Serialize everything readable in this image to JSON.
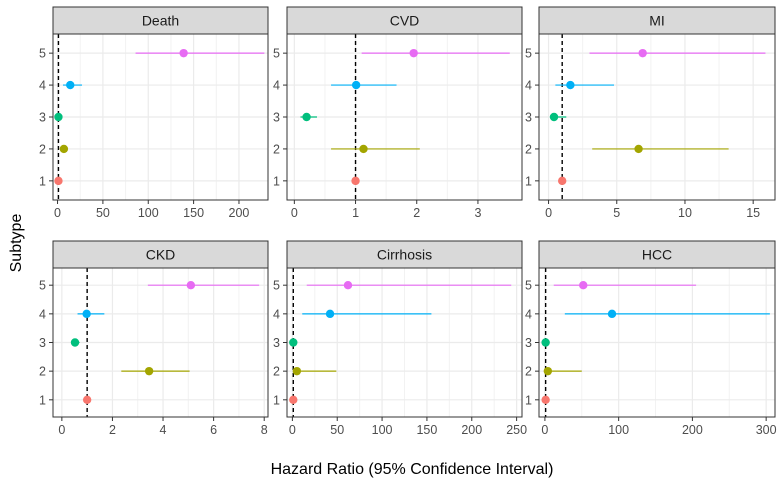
{
  "chart_data": {
    "type": "forest",
    "xlabel": "Hazard Ratio (95% Confidence Interval)",
    "ylabel": "Subtype",
    "subtypes": [
      "1",
      "2",
      "3",
      "4",
      "5"
    ],
    "reference_line": 1,
    "grid": true,
    "legend": "none",
    "colors": [
      "#F8766D",
      "#A3A500",
      "#00BF7D",
      "#00B0F6",
      "#E76BF3"
    ],
    "panels": [
      {
        "title": "Death",
        "xlim": [
          -5,
          232
        ],
        "xticks": [
          0,
          50,
          100,
          150,
          200
        ],
        "tick_labels": [
          "0",
          "50",
          "100",
          "150",
          "200"
        ],
        "points": [
          {
            "subtype": "1",
            "hr": 1,
            "lo": 1,
            "hi": 1
          },
          {
            "subtype": "2",
            "hr": 7,
            "lo": 4,
            "hi": 10
          },
          {
            "subtype": "3",
            "hr": 1,
            "lo": 0.6,
            "hi": 1.5
          },
          {
            "subtype": "4",
            "hr": 14,
            "lo": 6,
            "hi": 27
          },
          {
            "subtype": "5",
            "hr": 139,
            "lo": 86,
            "hi": 228
          }
        ]
      },
      {
        "title": "CVD",
        "xlim": [
          -0.12,
          3.72
        ],
        "xticks": [
          0,
          1,
          2,
          3
        ],
        "tick_labels": [
          "0",
          "1",
          "2",
          "3"
        ],
        "points": [
          {
            "subtype": "1",
            "hr": 1,
            "lo": 1,
            "hi": 1
          },
          {
            "subtype": "2",
            "hr": 1.13,
            "lo": 0.6,
            "hi": 2.05
          },
          {
            "subtype": "3",
            "hr": 0.2,
            "lo": 0.1,
            "hi": 0.37
          },
          {
            "subtype": "4",
            "hr": 1.01,
            "lo": 0.6,
            "hi": 1.67
          },
          {
            "subtype": "5",
            "hr": 1.95,
            "lo": 1.1,
            "hi": 3.52
          }
        ]
      },
      {
        "title": "MI",
        "xlim": [
          -0.7,
          16.6
        ],
        "xticks": [
          0,
          5,
          10,
          15
        ],
        "tick_labels": [
          "0",
          "5",
          "10",
          "15"
        ],
        "points": [
          {
            "subtype": "1",
            "hr": 1,
            "lo": 1,
            "hi": 1
          },
          {
            "subtype": "2",
            "hr": 6.6,
            "lo": 3.2,
            "hi": 13.2
          },
          {
            "subtype": "3",
            "hr": 0.4,
            "lo": 0.1,
            "hi": 1.3
          },
          {
            "subtype": "4",
            "hr": 1.6,
            "lo": 0.5,
            "hi": 4.8
          },
          {
            "subtype": "5",
            "hr": 6.9,
            "lo": 3,
            "hi": 15.9
          }
        ]
      },
      {
        "title": "CKD",
        "xlim": [
          -0.35,
          8.15
        ],
        "xticks": [
          0,
          2,
          4,
          6,
          8
        ],
        "tick_labels": [
          "0",
          "2",
          "4",
          "6",
          "8"
        ],
        "points": [
          {
            "subtype": "1",
            "hr": 1,
            "lo": 1,
            "hi": 1
          },
          {
            "subtype": "2",
            "hr": 3.45,
            "lo": 2.35,
            "hi": 5.05
          },
          {
            "subtype": "3",
            "hr": 0.52,
            "lo": 0.38,
            "hi": 0.7
          },
          {
            "subtype": "4",
            "hr": 0.98,
            "lo": 0.62,
            "hi": 1.68
          },
          {
            "subtype": "5",
            "hr": 5.1,
            "lo": 3.4,
            "hi": 7.8
          }
        ]
      },
      {
        "title": "Cirrhosis",
        "xlim": [
          -6,
          256
        ],
        "xticks": [
          0,
          50,
          100,
          150,
          200,
          250
        ],
        "tick_labels": [
          "0",
          "50",
          "100",
          "150",
          "200",
          "250"
        ],
        "points": [
          {
            "subtype": "1",
            "hr": 1,
            "lo": 1,
            "hi": 1
          },
          {
            "subtype": "2",
            "hr": 5,
            "lo": 1,
            "hi": 49
          },
          {
            "subtype": "3",
            "hr": 1,
            "lo": 0.2,
            "hi": 2
          },
          {
            "subtype": "4",
            "hr": 42,
            "lo": 11,
            "hi": 155
          },
          {
            "subtype": "5",
            "hr": 62,
            "lo": 16,
            "hi": 244
          }
        ]
      },
      {
        "title": "HCC",
        "xlim": [
          -8,
          312
        ],
        "xticks": [
          0,
          100,
          200,
          300
        ],
        "tick_labels": [
          "0",
          "100",
          "200",
          "300"
        ],
        "points": [
          {
            "subtype": "1",
            "hr": 1,
            "lo": 1,
            "hi": 1
          },
          {
            "subtype": "2",
            "hr": 4,
            "lo": 1,
            "hi": 50
          },
          {
            "subtype": "3",
            "hr": 1,
            "lo": 0.2,
            "hi": 2
          },
          {
            "subtype": "4",
            "hr": 91,
            "lo": 27,
            "hi": 305
          },
          {
            "subtype": "5",
            "hr": 52,
            "lo": 12,
            "hi": 205
          }
        ]
      }
    ]
  }
}
